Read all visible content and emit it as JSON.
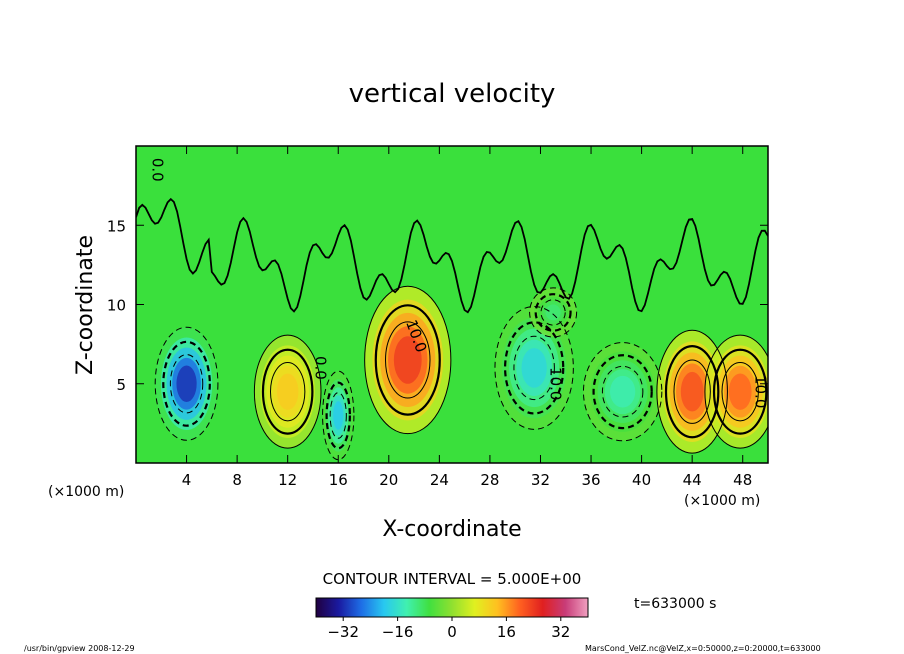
{
  "chart_data": {
    "type": "heatmap",
    "title": "vertical velocity",
    "xlabel": "X-coordinate",
    "ylabel": "Z-coordinate",
    "x_unit_left": "(×1000 m)",
    "x_unit_right": "(×1000 m)",
    "xlim": [
      0,
      50
    ],
    "ylim": [
      0,
      20
    ],
    "x_ticks": [
      4,
      8,
      12,
      16,
      20,
      24,
      28,
      32,
      36,
      40,
      44,
      48
    ],
    "y_ticks": [
      5,
      10,
      15
    ],
    "contour_interval_text": "CONTOUR INTERVAL = 5.000E+00",
    "time_text": "t=633000 s",
    "colorbar": {
      "range": [
        -40,
        40
      ],
      "ticks": [
        -32,
        -16,
        0,
        16,
        32
      ],
      "colors": [
        "#200040",
        "#1a1aa0",
        "#1e6ee6",
        "#28c8f0",
        "#40f0b0",
        "#40e040",
        "#90e030",
        "#e0f020",
        "#ffc020",
        "#ff6020",
        "#e02020",
        "#c83c78",
        "#f0a0c0"
      ]
    },
    "contour_labels": [
      {
        "text": "10.0",
        "x": 21.8,
        "y": 7.9,
        "angle": 70
      },
      {
        "text": "10.0",
        "x": 32.8,
        "y": 5.0,
        "angle": 90
      },
      {
        "text": "10.0",
        "x": 49.0,
        "y": 4.5,
        "angle": 90
      },
      {
        "text": "0.0",
        "x": 14.2,
        "y": 6.0,
        "angle": 90
      },
      {
        "text": "0.0",
        "x": 1.3,
        "y": 18.5,
        "angle": 90
      }
    ],
    "features": [
      {
        "sign": "negative",
        "x": 4.0,
        "z": 5.0,
        "sx": 1.6,
        "sz": 2.3,
        "amp": -32
      },
      {
        "sign": "negative",
        "x": 16.0,
        "z": 3.0,
        "sx": 0.8,
        "sz": 1.8,
        "amp": -20
      },
      {
        "sign": "negative",
        "x": 31.5,
        "z": 6.0,
        "sx": 2.0,
        "sz": 2.5,
        "amp": -18
      },
      {
        "sign": "negative",
        "x": 38.5,
        "z": 4.5,
        "sx": 2.0,
        "sz": 2.0,
        "amp": -14
      },
      {
        "sign": "negative",
        "x": 33.0,
        "z": 9.5,
        "sx": 1.2,
        "sz": 1.0,
        "amp": -10
      },
      {
        "sign": "positive",
        "x": 21.5,
        "z": 6.5,
        "sx": 2.2,
        "sz": 3.0,
        "amp": 24
      },
      {
        "sign": "positive",
        "x": 12.0,
        "z": 4.5,
        "sx": 1.7,
        "sz": 2.3,
        "amp": 12
      },
      {
        "sign": "positive",
        "x": 44.0,
        "z": 4.5,
        "sx": 1.8,
        "sz": 2.5,
        "amp": 22
      },
      {
        "sign": "positive",
        "x": 47.8,
        "z": 4.5,
        "sx": 1.8,
        "sz": 2.3,
        "amp": 20
      }
    ]
  },
  "footer": {
    "left": "/usr/bin/gpview  2008-12-29",
    "right": "MarsCond_VelZ.nc@VelZ,x=0:50000,z=0:20000,t=633000"
  }
}
